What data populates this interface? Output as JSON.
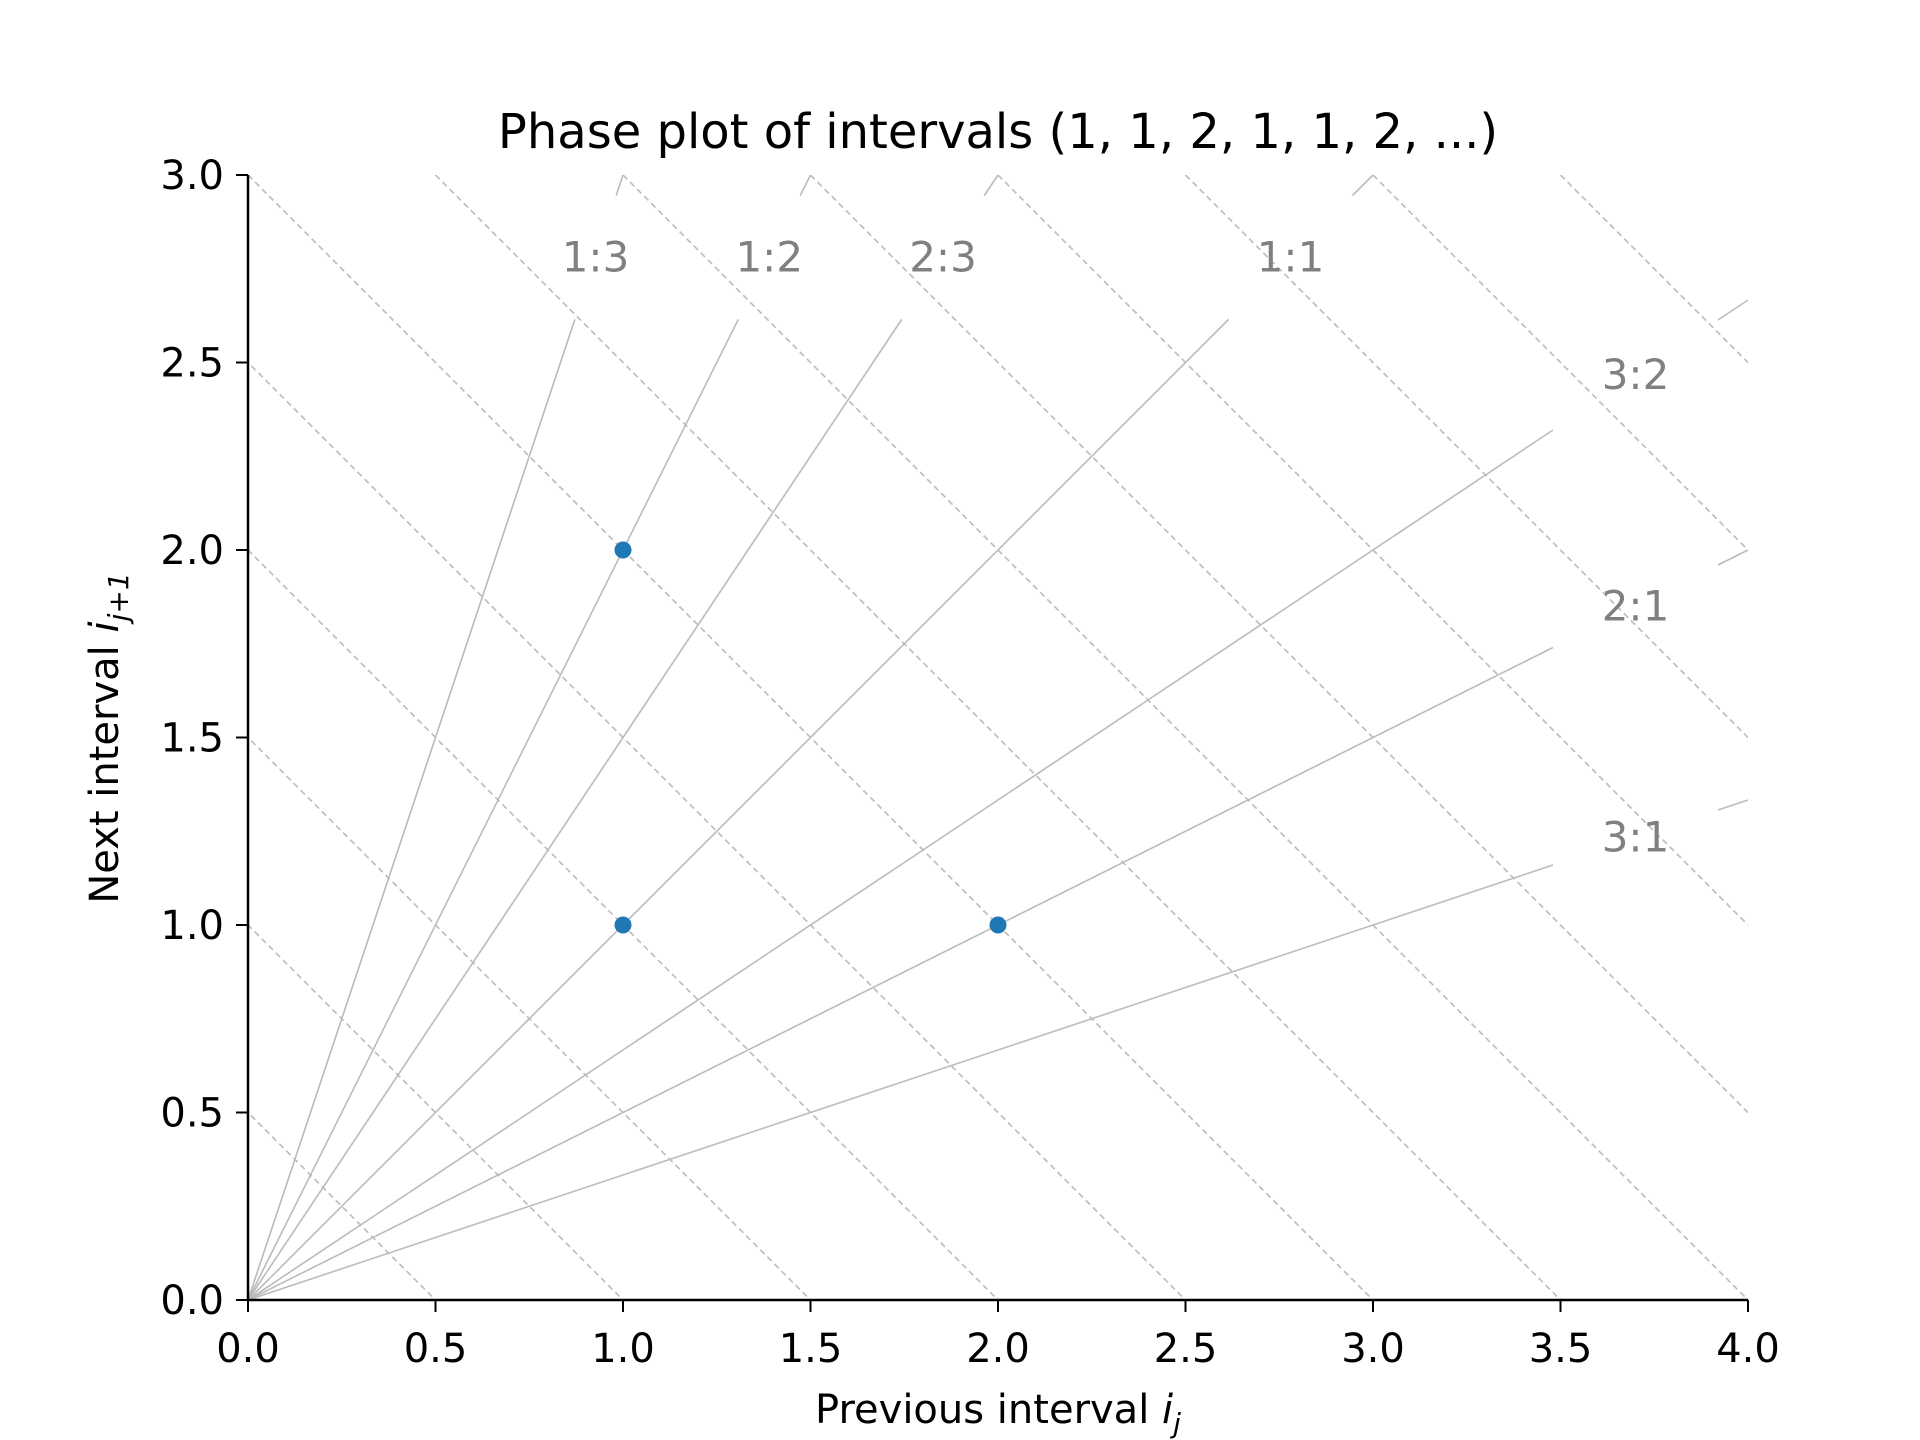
{
  "chart_data": {
    "type": "scatter",
    "title": "Phase plot of intervals (1, 1, 2, 1, 1, 2, ...)",
    "xlabel_text": "Previous interval ",
    "xlabel_var": "i",
    "xlabel_sub": "j",
    "ylabel_text": "Next interval ",
    "ylabel_var": "i",
    "ylabel_sub": "j+1",
    "xlim": [
      0,
      4
    ],
    "ylim": [
      0,
      3
    ],
    "xticks": [
      "0.0",
      "0.5",
      "1.0",
      "1.5",
      "2.0",
      "2.5",
      "3.0",
      "3.5",
      "4.0"
    ],
    "yticks": [
      "0.0",
      "0.5",
      "1.0",
      "1.5",
      "2.0",
      "2.5",
      "3.0"
    ],
    "points": [
      {
        "x": 1,
        "y": 2
      },
      {
        "x": 1,
        "y": 1
      },
      {
        "x": 2,
        "y": 1
      }
    ],
    "point_color": "#1f77b4",
    "ratio_lines": [
      {
        "label": "1:3",
        "num": 1,
        "den": 3
      },
      {
        "label": "1:2",
        "num": 1,
        "den": 2
      },
      {
        "label": "2:3",
        "num": 2,
        "den": 3
      },
      {
        "label": "1:1",
        "num": 1,
        "den": 1
      },
      {
        "label": "3:2",
        "num": 3,
        "den": 2
      },
      {
        "label": "2:1",
        "num": 2,
        "den": 1
      },
      {
        "label": "3:1",
        "num": 3,
        "den": 1
      }
    ],
    "ratio_line_color": "#bbbbbb",
    "ratio_label_color": "#808080",
    "isochrones": [
      0.5,
      1,
      1.5,
      2,
      2.5,
      3,
      3.5,
      4,
      4.5,
      5,
      5.5,
      6,
      6.5
    ],
    "isochrone_style": "dashed",
    "grid": false
  }
}
